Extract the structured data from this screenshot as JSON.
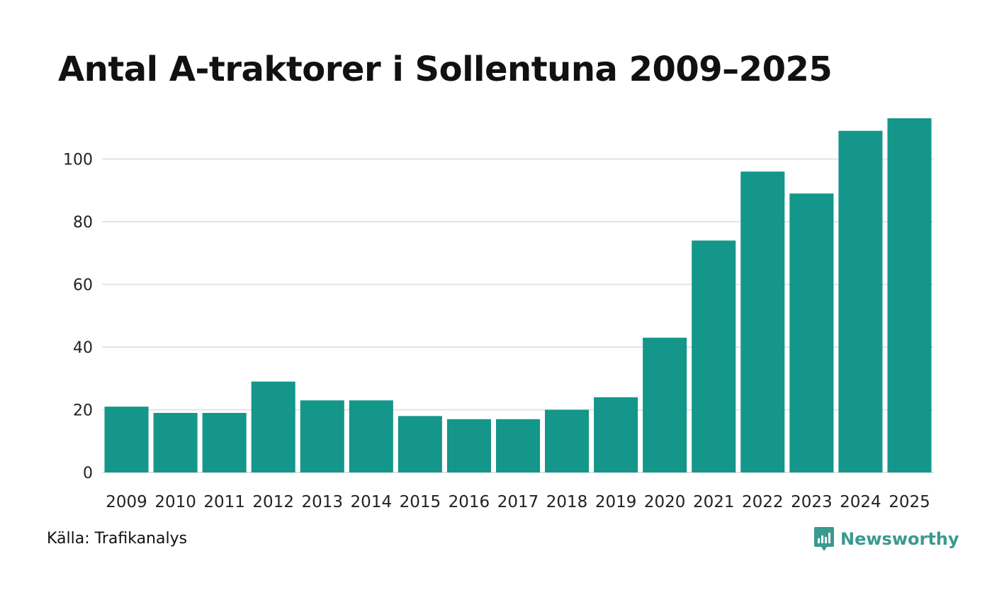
{
  "title": "Antal A-traktorer i Sollentuna 2009–2025",
  "source": "Källa: Trafikanalys",
  "brand": "Newsworthy",
  "colors": {
    "bar": "#14968a",
    "grid": "#e3e3e8",
    "brand": "#3a9a8f"
  },
  "chart_data": {
    "type": "bar",
    "title": "Antal A-traktorer i Sollentuna 2009–2025",
    "xlabel": "",
    "ylabel": "",
    "ylim": [
      0,
      113
    ],
    "yticks": [
      0,
      20,
      40,
      60,
      80,
      100
    ],
    "categories": [
      "2009",
      "2010",
      "2011",
      "2012",
      "2013",
      "2014",
      "2015",
      "2016",
      "2017",
      "2018",
      "2019",
      "2020",
      "2021",
      "2022",
      "2023",
      "2024",
      "2025"
    ],
    "values": [
      21,
      19,
      19,
      29,
      23,
      23,
      18,
      17,
      17,
      20,
      24,
      43,
      74,
      96,
      89,
      109,
      113
    ],
    "grid": true
  }
}
